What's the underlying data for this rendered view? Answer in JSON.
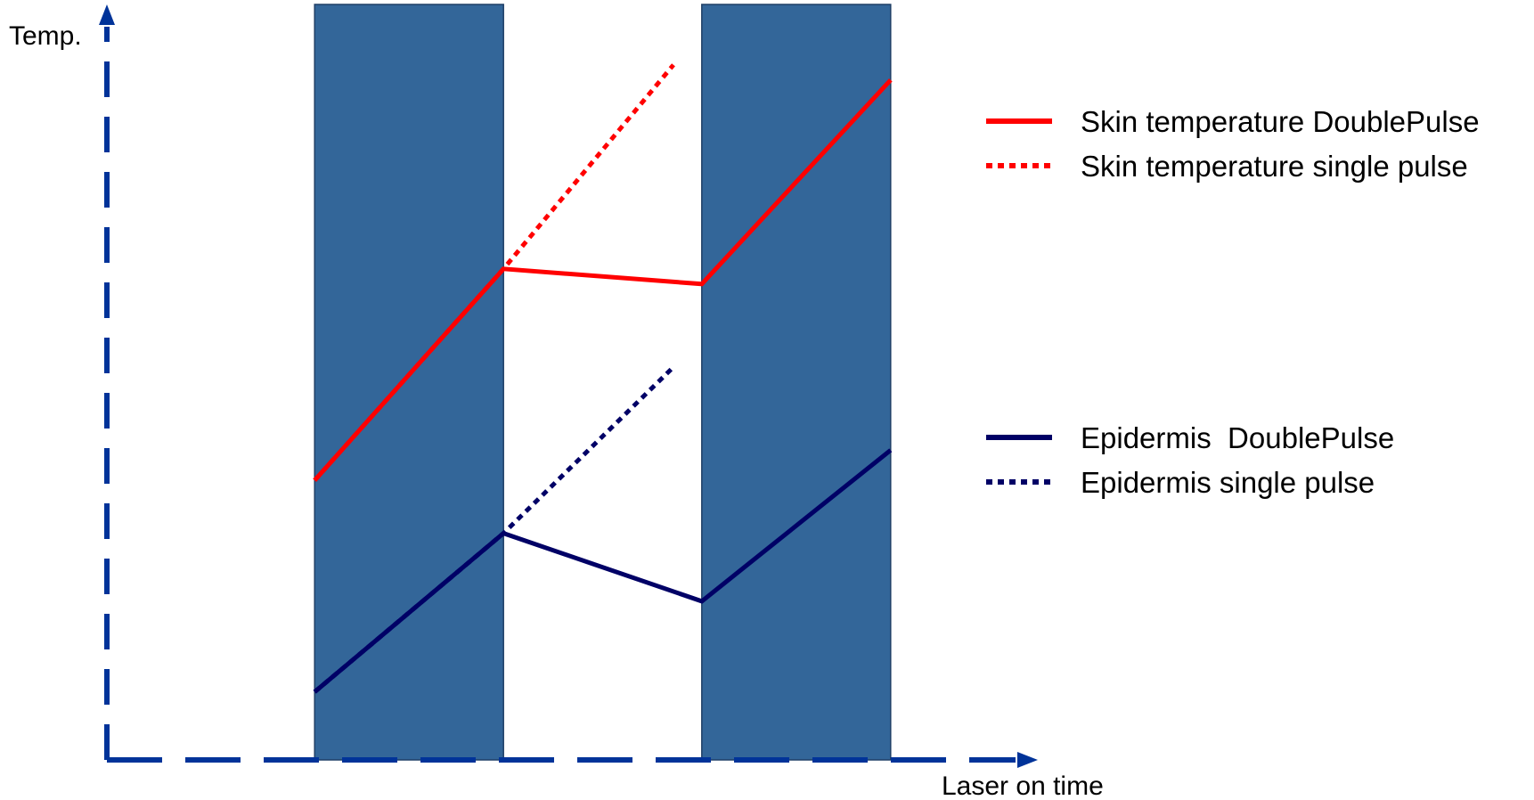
{
  "chart_data": {
    "type": "line",
    "xlabel": "Laser on time",
    "ylabel": "Temp.",
    "pulses": [
      {
        "name": "pulse-1",
        "start": 2.2,
        "end": 4.2
      },
      {
        "name": "pulse-2",
        "start": 6.3,
        "end": 8.3
      }
    ],
    "series": [
      {
        "name": "Skin temperature DoublePulse",
        "dash": "solid",
        "color": "#ff0000",
        "points": [
          [
            2.2,
            3.7
          ],
          [
            4.2,
            6.5
          ],
          [
            6.3,
            6.3
          ],
          [
            8.3,
            9.0
          ]
        ]
      },
      {
        "name": "Skin temperature single pulse",
        "dash": "dotted",
        "color": "#ff0000",
        "points": [
          [
            2.2,
            3.7
          ],
          [
            4.2,
            6.5
          ],
          [
            6.0,
            9.2
          ]
        ]
      },
      {
        "name": "Epidermis  DoublePulse",
        "dash": "solid",
        "color": "#000066",
        "points": [
          [
            2.2,
            0.9
          ],
          [
            4.2,
            3.0
          ],
          [
            6.3,
            2.1
          ],
          [
            8.3,
            4.1
          ]
        ]
      },
      {
        "name": "Epidermis single pulse",
        "dash": "dotted",
        "color": "#000066",
        "points": [
          [
            2.2,
            0.9
          ],
          [
            4.2,
            3.0
          ],
          [
            6.0,
            5.2
          ]
        ]
      }
    ],
    "legend": {
      "placement": "right",
      "groups": [
        {
          "entries": [
            0,
            1
          ]
        },
        {
          "entries": [
            2,
            3
          ]
        }
      ]
    },
    "colors": {
      "axis": "#003399",
      "pulse_fill": "#336699",
      "pulse_stroke": "#1f3f66"
    },
    "xlim": [
      0,
      10
    ],
    "ylim": [
      0,
      10
    ],
    "grid": false
  }
}
